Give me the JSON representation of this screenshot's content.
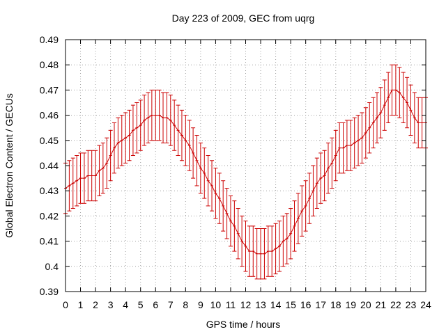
{
  "chart_data": {
    "type": "line",
    "title": "Day 223 of 2009, GEC from uqrg",
    "xlabel": "GPS time / hours",
    "ylabel": "Global Electron Content / GECUs",
    "xlim": [
      0,
      24
    ],
    "ylim": [
      0.39,
      0.49
    ],
    "xticks": [
      "0",
      "1",
      "2",
      "3",
      "4",
      "5",
      "6",
      "7",
      "8",
      "9",
      "10",
      "11",
      "12",
      "13",
      "14",
      "15",
      "16",
      "17",
      "18",
      "19",
      "20",
      "21",
      "22",
      "23",
      "24"
    ],
    "yticks": [
      "0.39",
      "0.4",
      "0.41",
      "0.42",
      "0.43",
      "0.44",
      "0.45",
      "0.46",
      "0.47",
      "0.48",
      "0.49"
    ],
    "grid": true,
    "error_bar": 0.01,
    "colors": {
      "series": "#cc0000",
      "grid": "#a0a0a0",
      "frame": "#000000"
    },
    "x": [
      0,
      0.25,
      0.5,
      0.75,
      1,
      1.25,
      1.5,
      1.75,
      2,
      2.25,
      2.5,
      2.75,
      3,
      3.25,
      3.5,
      3.75,
      4,
      4.25,
      4.5,
      4.75,
      5,
      5.25,
      5.5,
      5.75,
      6,
      6.25,
      6.5,
      6.75,
      7,
      7.25,
      7.5,
      7.75,
      8,
      8.25,
      8.5,
      8.75,
      9,
      9.25,
      9.5,
      9.75,
      10,
      10.25,
      10.5,
      10.75,
      11,
      11.25,
      11.5,
      11.75,
      12,
      12.25,
      12.5,
      12.75,
      13,
      13.25,
      13.5,
      13.75,
      14,
      14.25,
      14.5,
      14.75,
      15,
      15.25,
      15.5,
      15.75,
      16,
      16.25,
      16.5,
      16.75,
      17,
      17.25,
      17.5,
      17.75,
      18,
      18.25,
      18.5,
      18.75,
      19,
      19.25,
      19.5,
      19.75,
      20,
      20.25,
      20.5,
      20.75,
      21,
      21.25,
      21.5,
      21.75,
      22,
      22.25,
      22.5,
      22.75,
      23,
      23.25,
      23.5,
      23.75,
      24
    ],
    "series": [
      {
        "values": [
          0.431,
          0.432,
          0.433,
          0.434,
          0.435,
          0.435,
          0.436,
          0.436,
          0.436,
          0.438,
          0.439,
          0.441,
          0.444,
          0.447,
          0.449,
          0.45,
          0.451,
          0.452,
          0.454,
          0.455,
          0.456,
          0.458,
          0.459,
          0.46,
          0.46,
          0.46,
          0.459,
          0.459,
          0.458,
          0.456,
          0.454,
          0.452,
          0.45,
          0.448,
          0.445,
          0.442,
          0.439,
          0.437,
          0.434,
          0.432,
          0.429,
          0.427,
          0.424,
          0.421,
          0.418,
          0.416,
          0.413,
          0.41,
          0.408,
          0.406,
          0.406,
          0.405,
          0.405,
          0.405,
          0.406,
          0.406,
          0.407,
          0.408,
          0.41,
          0.411,
          0.413,
          0.416,
          0.419,
          0.422,
          0.424,
          0.427,
          0.43,
          0.433,
          0.435,
          0.436,
          0.439,
          0.441,
          0.444,
          0.447,
          0.447,
          0.448,
          0.448,
          0.449,
          0.45,
          0.451,
          0.453,
          0.455,
          0.457,
          0.459,
          0.461,
          0.464,
          0.467,
          0.47,
          0.47,
          0.469,
          0.467,
          0.465,
          0.462,
          0.459,
          0.457,
          0.457,
          0.457
        ]
      }
    ]
  }
}
